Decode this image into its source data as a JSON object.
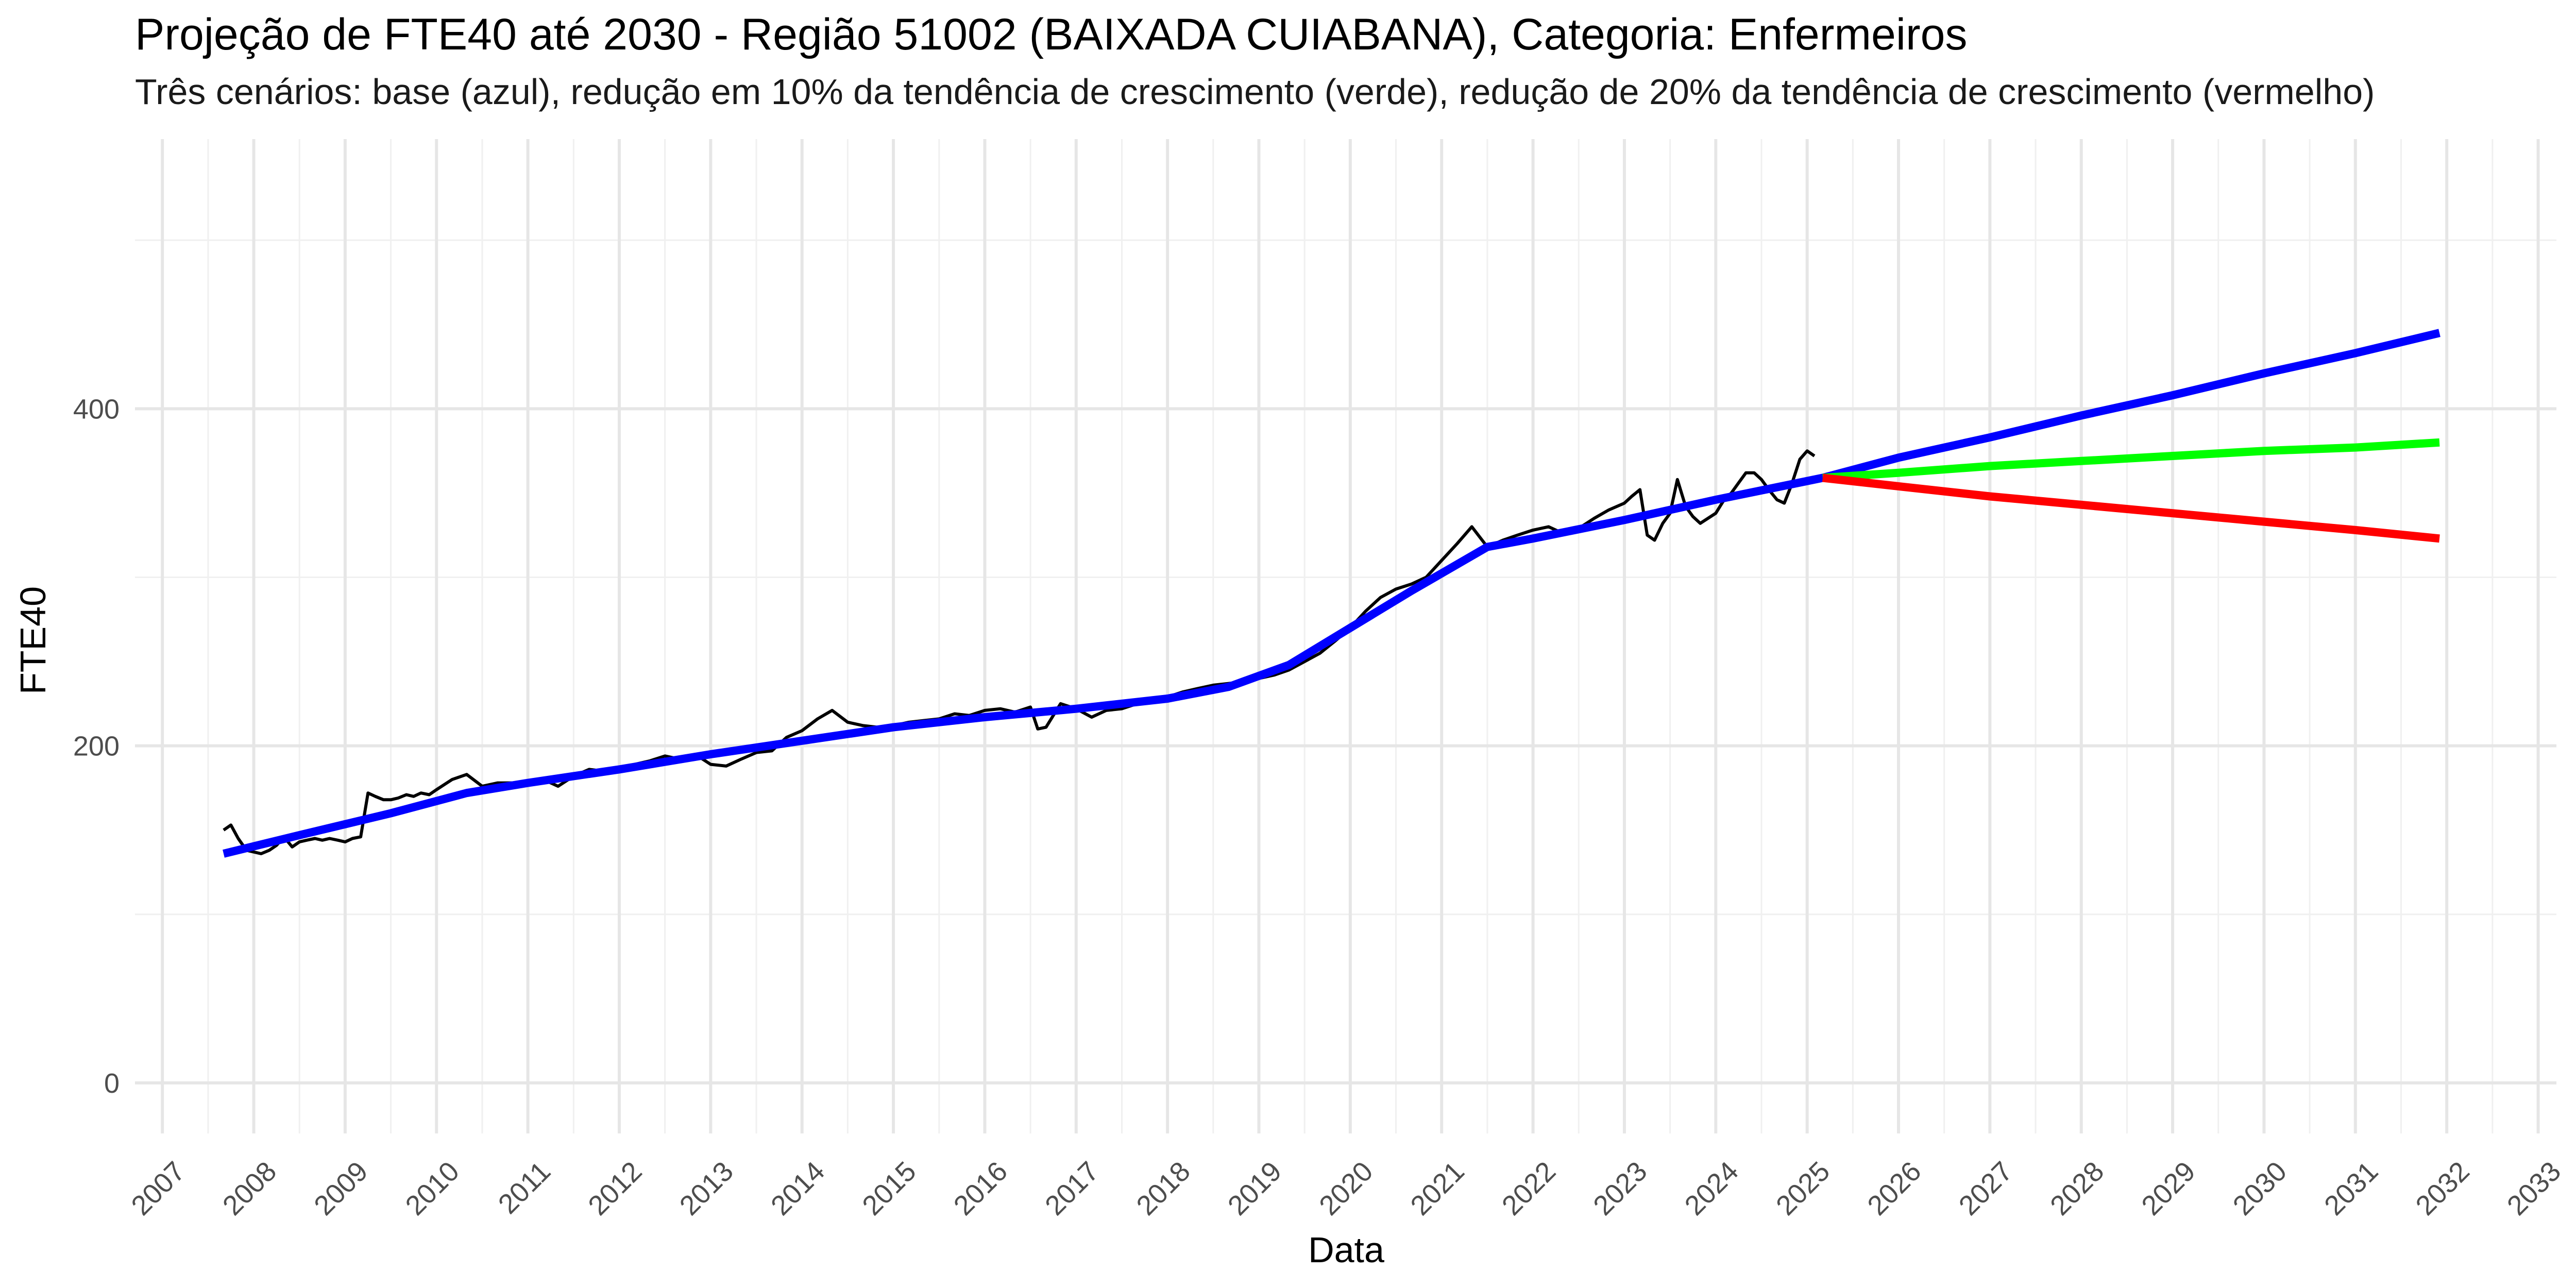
{
  "chart_data": {
    "type": "line",
    "title": "Projeção de FTE40 até 2030 - Região 51002 (BAIXADA CUIABANA), Categoria: Enfermeiros",
    "subtitle": "Três cenários: base (azul), redução em 10% da tendência de crescimento (verde), redução de 20% da tendência de crescimento (vermelho)",
    "xlabel": "Data",
    "ylabel": "FTE40",
    "xlim": [
      2006.7,
      2033.2
    ],
    "ylim": [
      -30,
      560
    ],
    "x_ticks": [
      2007,
      2008,
      2009,
      2010,
      2011,
      2012,
      2013,
      2014,
      2015,
      2016,
      2017,
      2018,
      2019,
      2020,
      2021,
      2022,
      2023,
      2024,
      2025,
      2026,
      2027,
      2028,
      2029,
      2030,
      2031,
      2032,
      2033
    ],
    "y_ticks": [
      0,
      200,
      400
    ],
    "y_minor": [
      100,
      300,
      500
    ],
    "grid": true,
    "legend": "none",
    "series": [
      {
        "color": "#000000",
        "width": "thin",
        "x": [
          2007.67,
          2007.75,
          2007.83,
          2007.92,
          2008.0,
          2008.08,
          2008.17,
          2008.25,
          2008.33,
          2008.42,
          2008.5,
          2008.58,
          2008.67,
          2008.75,
          2008.83,
          2008.92,
          2009.0,
          2009.08,
          2009.17,
          2009.25,
          2009.33,
          2009.42,
          2009.5,
          2009.58,
          2009.67,
          2009.75,
          2009.83,
          2009.92,
          2010.0,
          2010.17,
          2010.33,
          2010.5,
          2010.67,
          2010.83,
          2011.0,
          2011.17,
          2011.33,
          2011.5,
          2011.67,
          2011.83,
          2012.0,
          2012.17,
          2012.33,
          2012.5,
          2012.67,
          2012.83,
          2013.0,
          2013.17,
          2013.33,
          2013.5,
          2013.67,
          2013.83,
          2014.0,
          2014.17,
          2014.33,
          2014.5,
          2014.67,
          2014.83,
          2015.0,
          2015.17,
          2015.33,
          2015.5,
          2015.67,
          2015.83,
          2016.0,
          2016.17,
          2016.33,
          2016.5,
          2016.58,
          2016.67,
          2016.83,
          2017.0,
          2017.17,
          2017.33,
          2017.5,
          2017.67,
          2017.83,
          2018.0,
          2018.17,
          2018.33,
          2018.5,
          2018.67,
          2018.83,
          2019.0,
          2019.17,
          2019.33,
          2019.5,
          2019.67,
          2019.83,
          2020.0,
          2020.17,
          2020.33,
          2020.5,
          2020.67,
          2020.83,
          2021.0,
          2021.17,
          2021.33,
          2021.5,
          2021.67,
          2021.83,
          2022.0,
          2022.17,
          2022.33,
          2022.5,
          2022.67,
          2022.83,
          2023.0,
          2023.08,
          2023.17,
          2023.25,
          2023.33,
          2023.42,
          2023.5,
          2023.58,
          2023.67,
          2023.75,
          2023.83,
          2024.0,
          2024.08,
          2024.17,
          2024.25,
          2024.33,
          2024.42,
          2024.5,
          2024.58,
          2024.67,
          2024.75,
          2024.83,
          2024.92,
          2025.0,
          2025.08
        ],
        "values": [
          150,
          153,
          145,
          138,
          137,
          136,
          138,
          141,
          146,
          140,
          143,
          144,
          145,
          144,
          145,
          144,
          143,
          145,
          146,
          172,
          170,
          168,
          168,
          169,
          171,
          170,
          172,
          171,
          174,
          180,
          183,
          176,
          178,
          178,
          179,
          180,
          176,
          182,
          186,
          185,
          186,
          189,
          191,
          194,
          192,
          195,
          189,
          188,
          192,
          196,
          197,
          205,
          209,
          216,
          221,
          214,
          212,
          211,
          212,
          214,
          215,
          216,
          219,
          218,
          221,
          222,
          220,
          223,
          210,
          211,
          225,
          222,
          217,
          221,
          222,
          225,
          226,
          229,
          232,
          234,
          236,
          237,
          238,
          240,
          242,
          245,
          250,
          255,
          262,
          270,
          280,
          288,
          293,
          296,
          300,
          310,
          320,
          330,
          318,
          322,
          325,
          328,
          330,
          326,
          329,
          335,
          340,
          344,
          348,
          352,
          325,
          322,
          332,
          338,
          358,
          342,
          336,
          332,
          338,
          345,
          350,
          356,
          362,
          362,
          358,
          352,
          346,
          344,
          355,
          370,
          375,
          372
        ],
        "note_drop": true
      },
      {
        "color": "#0000ff",
        "width": "thick",
        "x": [
          2007.67,
          2008.5,
          2009.5,
          2010.33,
          2011.0,
          2012.0,
          2013.0,
          2014.0,
          2015.0,
          2016.0,
          2017.0,
          2018.0,
          2018.67,
          2019.33,
          2020.0,
          2020.67,
          2021.5,
          2022.0,
          2023.0,
          2024.0,
          2025.17,
          2026.0,
          2027.0,
          2028.0,
          2029.0,
          2030.0,
          2031.0,
          2031.92
        ],
        "values": [
          136,
          147,
          160,
          172,
          178,
          186,
          195,
          203,
          211,
          217,
          222,
          228,
          235,
          248,
          270,
          292,
          318,
          323,
          334,
          346,
          359,
          371,
          383,
          396,
          408,
          421,
          433,
          445
        ]
      },
      {
        "color": "#00ff00",
        "width": "thick",
        "x": [
          2025.17,
          2026.0,
          2027.0,
          2028.0,
          2029.0,
          2030.0,
          2031.0,
          2031.92
        ],
        "values": [
          359,
          362,
          366,
          369,
          372,
          375,
          377,
          380
        ]
      },
      {
        "color": "#ff0000",
        "width": "thick",
        "x": [
          2025.17,
          2026.0,
          2027.0,
          2028.0,
          2029.0,
          2030.0,
          2031.0,
          2031.92
        ],
        "values": [
          359,
          354,
          348,
          343,
          338,
          333,
          328,
          323
        ]
      }
    ]
  }
}
